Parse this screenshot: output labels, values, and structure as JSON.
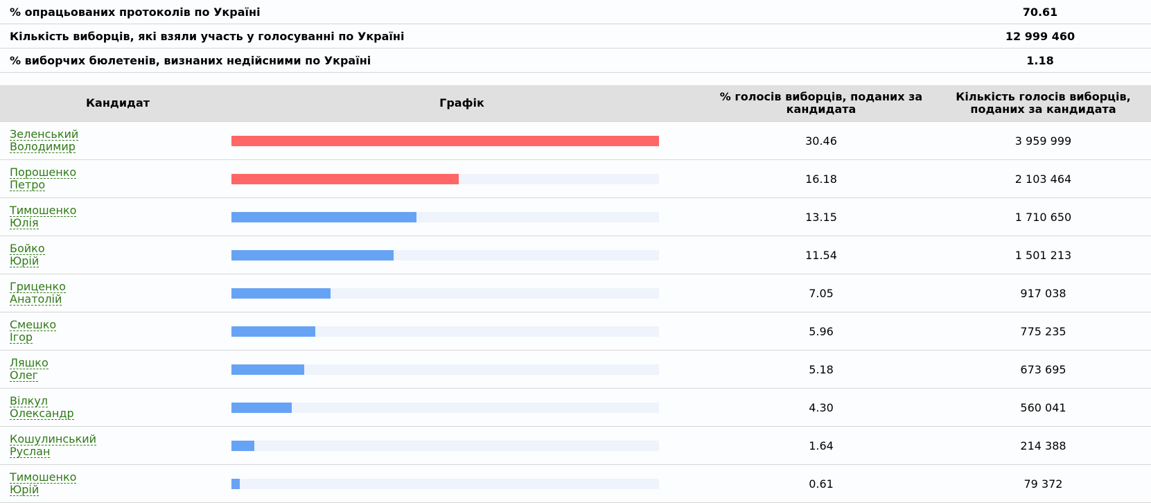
{
  "summary": [
    {
      "label": "% опрацьованих протоколів по Україні",
      "value": "70.61"
    },
    {
      "label": "Кількість виборців, які взяли участь у голосуванні по Україні",
      "value": "12 999 460"
    },
    {
      "label": "% виборчих бюлетенів, визнаних недійсними по Україні",
      "value": "1.18"
    }
  ],
  "table": {
    "headers": {
      "candidate": "Кандидат",
      "chart": "Графік",
      "percent_line1": "% голосів виборців, поданих за",
      "percent_line2": "кандидата",
      "votes_line1": "Кількість голосів виборців,",
      "votes_line2": "поданих за кандидата"
    },
    "colors": {
      "leader_bar": "#ff6666",
      "other_bar": "#66a3f5",
      "track": "#eef3fc"
    },
    "rows": [
      {
        "surname": "Зеленський",
        "given": "Володимир",
        "percent": "30.46",
        "votes": "3 959 999",
        "fill": 1.0,
        "leader": true
      },
      {
        "surname": "Порошенко",
        "given": "Петро",
        "percent": "16.18",
        "votes": "2 103 464",
        "fill": 0.531,
        "leader": true
      },
      {
        "surname": "Тимошенко",
        "given": "Юлія",
        "percent": "13.15",
        "votes": "1 710 650",
        "fill": 0.432,
        "leader": false
      },
      {
        "surname": "Бойко",
        "given": "Юрій",
        "percent": "11.54",
        "votes": "1 501 213",
        "fill": 0.379,
        "leader": false
      },
      {
        "surname": "Гриценко",
        "given": "Анатолій",
        "percent": "7.05",
        "votes": "917 038",
        "fill": 0.231,
        "leader": false
      },
      {
        "surname": "Смешко",
        "given": "Ігор",
        "percent": "5.96",
        "votes": "775 235",
        "fill": 0.196,
        "leader": false
      },
      {
        "surname": "Ляшко",
        "given": "Олег",
        "percent": "5.18",
        "votes": "673 695",
        "fill": 0.17,
        "leader": false
      },
      {
        "surname": "Вілкул",
        "given": "Олександр",
        "percent": "4.30",
        "votes": "560 041",
        "fill": 0.141,
        "leader": false
      },
      {
        "surname": "Кошулинський",
        "given": "Руслан",
        "percent": "1.64",
        "votes": "214 388",
        "fill": 0.054,
        "leader": false
      },
      {
        "surname": "Тимошенко",
        "given": "Юрій",
        "percent": "0.61",
        "votes": "79 372",
        "fill": 0.02,
        "leader": false
      }
    ]
  }
}
